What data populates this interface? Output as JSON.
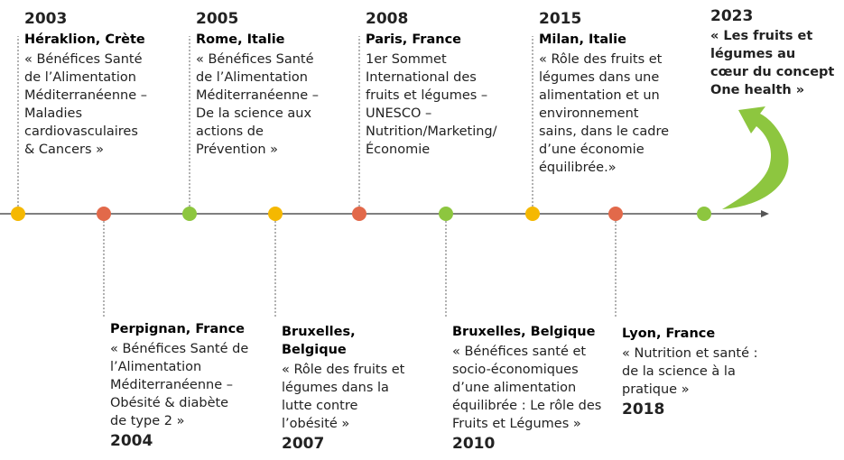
{
  "events": [
    {
      "year": "2003",
      "place": [
        "Héraklion, Crète"
      ],
      "text": [
        "« Bénéfices Santé",
        "de l’Alimentation",
        "Méditerranéenne –",
        "Maladies",
        "cardiovasculaires",
        "& Cancers »"
      ]
    },
    {
      "year": "2004",
      "place": [
        "Perpignan, France"
      ],
      "text": [
        "« Bénéfices Santé de",
        "l’Alimentation",
        "Méditerranéenne –",
        "Obésité & diabète",
        "de type 2 »"
      ]
    },
    {
      "year": "2005",
      "place": [
        "Rome, Italie"
      ],
      "text": [
        "« Bénéfices Santé",
        "de l’Alimentation",
        "Méditerranéenne –",
        "De la science aux",
        "actions de",
        "Prévention »"
      ]
    },
    {
      "year": "2007",
      "place": [
        "Bruxelles,",
        "Belgique"
      ],
      "text": [
        "« Rôle des fruits et",
        "légumes dans la",
        "lutte contre",
        "l’obésité »"
      ]
    },
    {
      "year": "2008",
      "place": [
        "Paris, France"
      ],
      "text": [
        "1er Sommet",
        "International des",
        "fruits et légumes –",
        "UNESCO –",
        "Nutrition/Marketing/",
        "Économie"
      ]
    },
    {
      "year": "2010",
      "place": [
        "Bruxelles, Belgique"
      ],
      "text": [
        "« Bénéfices santé et",
        "socio-économiques",
        "d’une alimentation",
        "équilibrée : Le rôle des",
        "Fruits et Légumes »"
      ]
    },
    {
      "year": "2015",
      "place": [
        "Milan, Italie"
      ],
      "text": [
        "« Rôle des fruits et",
        "légumes dans une",
        "alimentation et un",
        "environnement",
        "sains, dans le cadre",
        "d’une économie",
        "équilibrée.»"
      ]
    },
    {
      "year": "2018",
      "place": [
        "Lyon, France"
      ],
      "text": [
        "« Nutrition et santé :",
        "de la science à la",
        "pratique »"
      ]
    },
    {
      "year": "2023",
      "place": [],
      "text": [
        "« Les fruits et",
        "légumes au",
        "cœur du concept",
        "One health »"
      ]
    }
  ]
}
